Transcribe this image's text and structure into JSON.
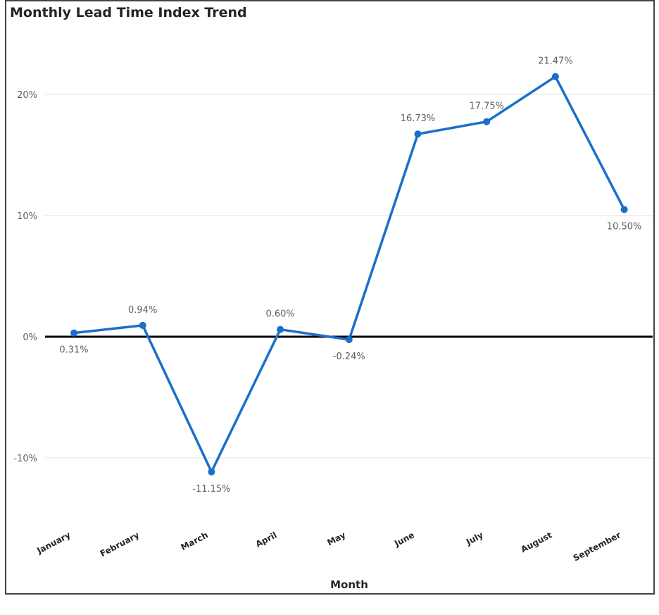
{
  "chart_data": {
    "type": "line",
    "title": "Monthly Lead Time Index Trend",
    "xlabel": "Month",
    "ylabel": "",
    "categories": [
      "January",
      "February",
      "March",
      "April",
      "May",
      "June",
      "July",
      "August",
      "September"
    ],
    "series": [
      {
        "values": [
          0.31,
          0.94,
          -11.15,
          0.6,
          -0.24,
          16.73,
          17.75,
          21.47,
          10.5
        ],
        "labels": [
          "0.31%",
          "0.94%",
          "-11.15%",
          "0.60%",
          "-0.24%",
          "16.73%",
          "17.75%",
          "21.47%",
          "10.50%"
        ],
        "label_position": [
          "below",
          "above",
          "below",
          "above",
          "below",
          "above",
          "above",
          "above",
          "below"
        ],
        "color": "#1a6fc9"
      }
    ],
    "yticks": [
      -10,
      0,
      10,
      20
    ],
    "ytick_labels": [
      "-10%",
      "0%",
      "10%",
      "20%"
    ],
    "ylim": [
      -14,
      27
    ],
    "grid": true,
    "zero_line_color": "#000000",
    "grid_color": "#e1e1e1"
  }
}
